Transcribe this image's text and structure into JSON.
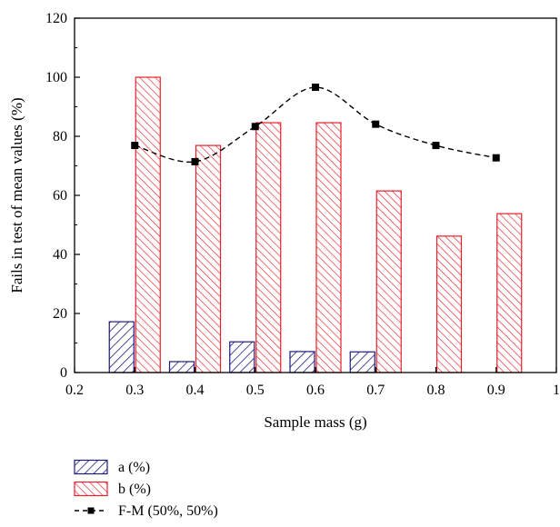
{
  "chart_data": {
    "type": "bar",
    "xlabel": "Sample mass (g)",
    "ylabel": "Fails in test of mean values (%)",
    "xlim": [
      0.2,
      1.0
    ],
    "ylim": [
      0,
      120
    ],
    "xticks": [
      0.2,
      0.3,
      0.4,
      0.5,
      0.6,
      0.7,
      0.8,
      0.9,
      1.0
    ],
    "xtick_labels": [
      "0.2",
      "0.3",
      "0.4",
      "0.5",
      "0.6",
      "0.7",
      "0.8",
      "0.9",
      "1"
    ],
    "yticks": [
      0,
      20,
      40,
      60,
      80,
      100,
      120
    ],
    "ytick_labels": [
      "0",
      "20",
      "40",
      "60",
      "80",
      "100",
      "120"
    ],
    "categories": [
      0.3,
      0.4,
      0.5,
      0.6,
      0.7,
      0.8,
      0.9
    ],
    "series": [
      {
        "name": "a (%)",
        "kind": "bar",
        "values": [
          17.2,
          3.7,
          10.4,
          7.1,
          7.0,
          0,
          0
        ],
        "color": "#1c1c7a"
      },
      {
        "name": "b (%)",
        "kind": "bar",
        "values": [
          100,
          76.9,
          84.6,
          84.6,
          61.5,
          46.2,
          53.8
        ],
        "color": "#e8202a"
      },
      {
        "name": "F-M (50%, 50%)",
        "kind": "line",
        "x": [
          0.3,
          0.4,
          0.5,
          0.6,
          0.7,
          0.8,
          0.9
        ],
        "values": [
          76.9,
          71.4,
          83.3,
          96.6,
          84.1,
          76.9,
          72.7
        ],
        "color": "#000000",
        "line_style": "dashed",
        "marker": "square"
      }
    ],
    "grid": false,
    "legend_position": "bottom-left"
  }
}
